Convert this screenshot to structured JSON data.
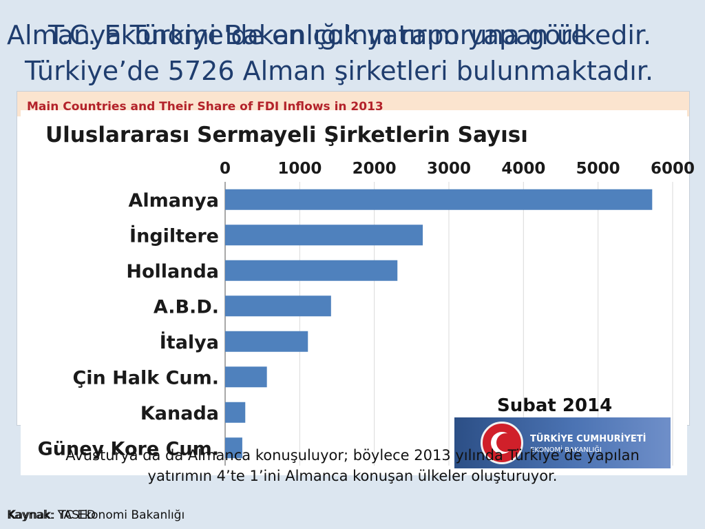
{
  "slide": {
    "title_line1a": "Almanya Türkiye'de en çok yatırım yapan ülkedir.",
    "title_line1b": "T.C. Ekonomi Bakanlığı'nın raporuna göre",
    "title_line2": "Türkiye’de 5726 Alman şirketleri bulunmaktadır.",
    "body_text": "Avusturya’da da Almanca konuşuluyor; böylece 2013 yılında Türkiye’de yapılan yatırımın 4’te 1’ini Almanca konuşan ülkeler oluşturuyor.",
    "source1": "Kaynak: YASED",
    "source2": "Kaynak: TC Ekonomi Bakanlığı"
  },
  "background_chart": {
    "title": "Main Countries and Their Share of FDI Inflows in 2013"
  },
  "date_label": "Subat 2014",
  "logo": {
    "line1": "TÜRKİYE CUMHURİYETİ",
    "line2": "EKONOMİ BAKANLIĞI"
  },
  "colors": {
    "bar": "#4f81bd",
    "title_text": "#1f3d6e",
    "header_band": "#fbe4cf",
    "header_text": "#b3222a"
  },
  "chart_data": {
    "type": "bar",
    "orientation": "horizontal",
    "title": "Uluslararası Sermayeli Şirketlerin Sayısı",
    "categories": [
      "Almanya",
      "İngiltere",
      "Hollanda",
      "A.B.D.",
      "İtalya",
      "Çin Halk Cum.",
      "Kanada",
      "Güney Kore Cum."
    ],
    "values": [
      5726,
      2650,
      2310,
      1420,
      1110,
      560,
      270,
      230
    ],
    "xlim": [
      0,
      6000
    ],
    "x_ticks": [
      "0",
      "1000",
      "2000",
      "3000",
      "4000",
      "5000",
      "6000"
    ],
    "grid": true,
    "legend": "none"
  }
}
